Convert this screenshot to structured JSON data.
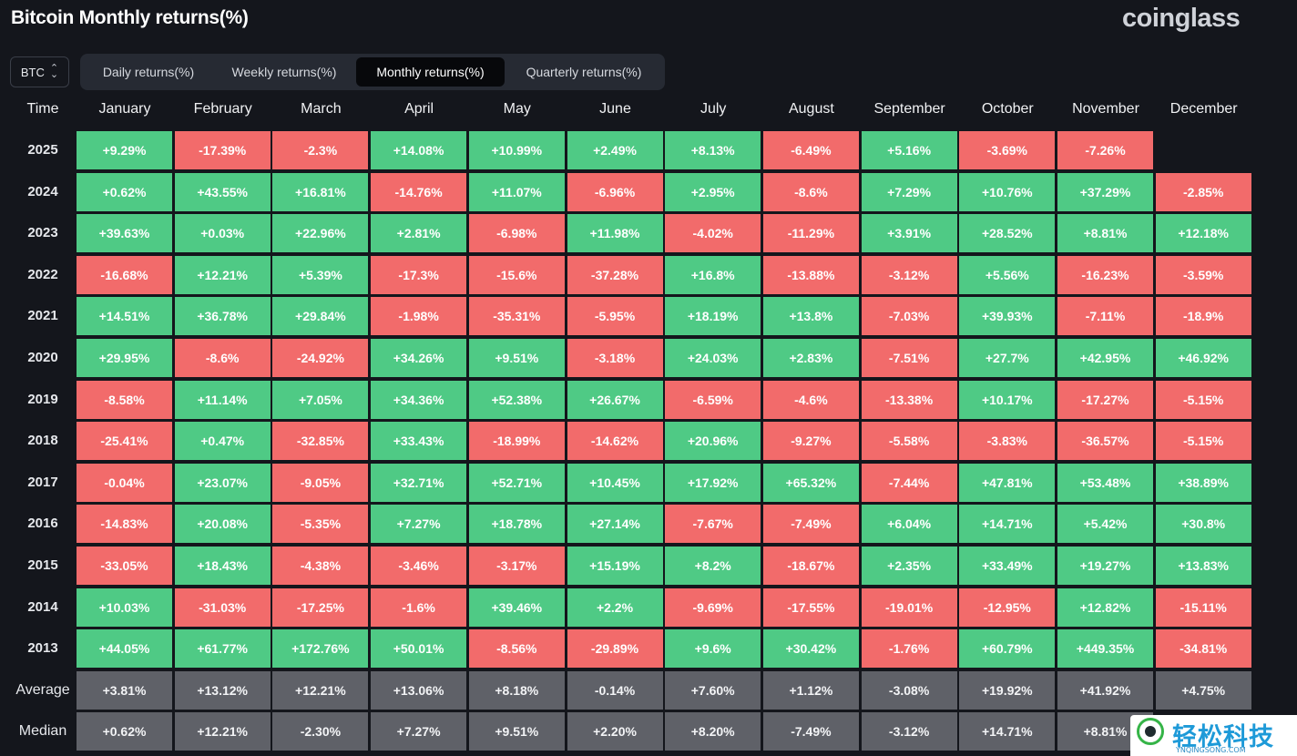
{
  "header": {
    "title": "Bitcoin Monthly returns(%)",
    "brand": "coinglass"
  },
  "coin_select": {
    "value": "BTC"
  },
  "tabs": [
    {
      "label": "Daily returns(%)",
      "active": false
    },
    {
      "label": "Weekly returns(%)",
      "active": false
    },
    {
      "label": "Monthly returns(%)",
      "active": true
    },
    {
      "label": "Quarterly returns(%)",
      "active": false
    }
  ],
  "table": {
    "time_header": "Time",
    "months": [
      "January",
      "February",
      "March",
      "April",
      "May",
      "June",
      "July",
      "August",
      "September",
      "October",
      "November",
      "December"
    ],
    "rows": [
      {
        "year": "2025",
        "values": [
          "+9.29%",
          "-17.39%",
          "-2.3%",
          "+14.08%",
          "+10.99%",
          "+2.49%",
          "+8.13%",
          "-6.49%",
          "+5.16%",
          "-3.69%",
          "-7.26%",
          ""
        ]
      },
      {
        "year": "2024",
        "values": [
          "+0.62%",
          "+43.55%",
          "+16.81%",
          "-14.76%",
          "+11.07%",
          "-6.96%",
          "+2.95%",
          "-8.6%",
          "+7.29%",
          "+10.76%",
          "+37.29%",
          "-2.85%"
        ]
      },
      {
        "year": "2023",
        "values": [
          "+39.63%",
          "+0.03%",
          "+22.96%",
          "+2.81%",
          "-6.98%",
          "+11.98%",
          "-4.02%",
          "-11.29%",
          "+3.91%",
          "+28.52%",
          "+8.81%",
          "+12.18%"
        ]
      },
      {
        "year": "2022",
        "values": [
          "-16.68%",
          "+12.21%",
          "+5.39%",
          "-17.3%",
          "-15.6%",
          "-37.28%",
          "+16.8%",
          "-13.88%",
          "-3.12%",
          "+5.56%",
          "-16.23%",
          "-3.59%"
        ]
      },
      {
        "year": "2021",
        "values": [
          "+14.51%",
          "+36.78%",
          "+29.84%",
          "-1.98%",
          "-35.31%",
          "-5.95%",
          "+18.19%",
          "+13.8%",
          "-7.03%",
          "+39.93%",
          "-7.11%",
          "-18.9%"
        ]
      },
      {
        "year": "2020",
        "values": [
          "+29.95%",
          "-8.6%",
          "-24.92%",
          "+34.26%",
          "+9.51%",
          "-3.18%",
          "+24.03%",
          "+2.83%",
          "-7.51%",
          "+27.7%",
          "+42.95%",
          "+46.92%"
        ]
      },
      {
        "year": "2019",
        "values": [
          "-8.58%",
          "+11.14%",
          "+7.05%",
          "+34.36%",
          "+52.38%",
          "+26.67%",
          "-6.59%",
          "-4.6%",
          "-13.38%",
          "+10.17%",
          "-17.27%",
          "-5.15%"
        ]
      },
      {
        "year": "2018",
        "values": [
          "-25.41%",
          "+0.47%",
          "-32.85%",
          "+33.43%",
          "-18.99%",
          "-14.62%",
          "+20.96%",
          "-9.27%",
          "-5.58%",
          "-3.83%",
          "-36.57%",
          "-5.15%"
        ]
      },
      {
        "year": "2017",
        "values": [
          "-0.04%",
          "+23.07%",
          "-9.05%",
          "+32.71%",
          "+52.71%",
          "+10.45%",
          "+17.92%",
          "+65.32%",
          "-7.44%",
          "+47.81%",
          "+53.48%",
          "+38.89%"
        ]
      },
      {
        "year": "2016",
        "values": [
          "-14.83%",
          "+20.08%",
          "-5.35%",
          "+7.27%",
          "+18.78%",
          "+27.14%",
          "-7.67%",
          "-7.49%",
          "+6.04%",
          "+14.71%",
          "+5.42%",
          "+30.8%"
        ]
      },
      {
        "year": "2015",
        "values": [
          "-33.05%",
          "+18.43%",
          "-4.38%",
          "-3.46%",
          "-3.17%",
          "+15.19%",
          "+8.2%",
          "-18.67%",
          "+2.35%",
          "+33.49%",
          "+19.27%",
          "+13.83%"
        ]
      },
      {
        "year": "2014",
        "values": [
          "+10.03%",
          "-31.03%",
          "-17.25%",
          "-1.6%",
          "+39.46%",
          "+2.2%",
          "-9.69%",
          "-17.55%",
          "-19.01%",
          "-12.95%",
          "+12.82%",
          "-15.11%"
        ]
      },
      {
        "year": "2013",
        "values": [
          "+44.05%",
          "+61.77%",
          "+172.76%",
          "+50.01%",
          "-8.56%",
          "-29.89%",
          "+9.6%",
          "+30.42%",
          "-1.76%",
          "+60.79%",
          "+449.35%",
          "-34.81%"
        ]
      }
    ],
    "stats": [
      {
        "label": "Average",
        "values": [
          "+3.81%",
          "+13.12%",
          "+12.21%",
          "+13.06%",
          "+8.18%",
          "-0.14%",
          "+7.60%",
          "+1.12%",
          "-3.08%",
          "+19.92%",
          "+41.92%",
          "+4.75%"
        ]
      },
      {
        "label": "Median",
        "values": [
          "+0.62%",
          "+12.21%",
          "-2.30%",
          "+7.27%",
          "+9.51%",
          "+2.20%",
          "+8.20%",
          "-7.49%",
          "-3.12%",
          "+14.71%",
          "+8.81%",
          ""
        ]
      }
    ]
  },
  "colors": {
    "positive": "#4fca85",
    "negative": "#f26b6b",
    "stat": "#5f6168",
    "background": "#14161c"
  },
  "watermark": {
    "cn": "轻松科技",
    "en": "YNQINGSONG.COM"
  }
}
